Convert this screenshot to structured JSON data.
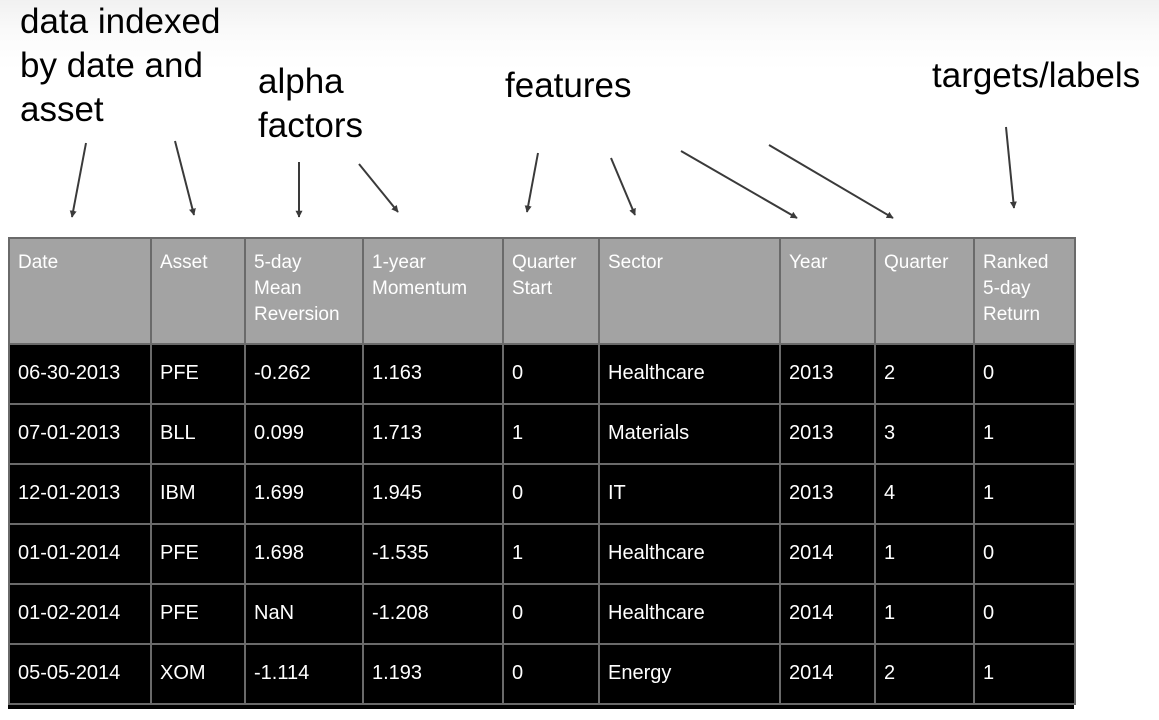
{
  "annotations": {
    "index": [
      "data indexed",
      "by date and",
      "asset"
    ],
    "alpha": [
      "alpha",
      "factors"
    ],
    "features": [
      "features"
    ],
    "targets": [
      "targets/labels"
    ]
  },
  "table": {
    "headers": [
      [
        "Date"
      ],
      [
        "Asset"
      ],
      [
        "5-day",
        "Mean",
        "Reversion"
      ],
      [
        "1-year",
        "Momentum"
      ],
      [
        "Quarter",
        "Start"
      ],
      [
        "Sector"
      ],
      [
        "Year"
      ],
      [
        "Quarter"
      ],
      [
        "Ranked",
        "5-day",
        "Return"
      ]
    ],
    "rows": [
      [
        "06-30-2013",
        "PFE",
        "-0.262",
        "1.163",
        "0",
        "Healthcare",
        "2013",
        "2",
        "0"
      ],
      [
        "07-01-2013",
        "BLL",
        "0.099",
        "1.713",
        "1",
        "Materials",
        "2013",
        "3",
        "1"
      ],
      [
        "12-01-2013",
        "IBM",
        "1.699",
        "1.945",
        "0",
        "IT",
        "2013",
        "4",
        "1"
      ],
      [
        "01-01-2014",
        "PFE",
        "1.698",
        "-1.535",
        "1",
        "Healthcare",
        "2014",
        "1",
        "0"
      ],
      [
        "01-02-2014",
        "PFE",
        "NaN",
        "-1.208",
        "0",
        "Healthcare",
        "2014",
        "1",
        "0"
      ],
      [
        "05-05-2014",
        "XOM",
        "-1.114",
        "1.193",
        "0",
        "Energy",
        "2014",
        "2",
        "1"
      ]
    ]
  },
  "colors": {
    "header_bg": "#a3a3a3",
    "body_bg": "#000000",
    "cell_text": "#ffffff",
    "grid": "#6a6a6a",
    "arrow": "#3a3a3a"
  }
}
